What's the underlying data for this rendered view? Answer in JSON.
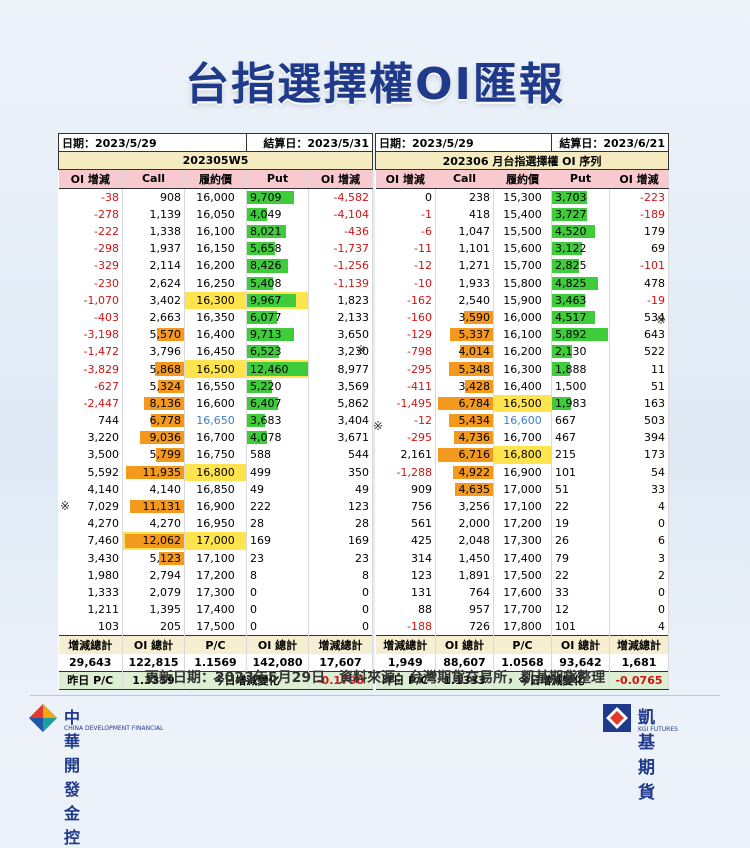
{
  "title": "台指選擇權OI匯報",
  "footer_text": "更新日期：2023年5月29日　資料來源：台灣期貨交易所，凱基期貨整理",
  "mark": "※",
  "left": {
    "date_label": "日期：2023/5/29",
    "settle_label": "結算日：2023/5/31",
    "series": "202305W5",
    "headers": [
      "OI 增減",
      "Call",
      "履約價",
      "Put",
      "OI 增減"
    ],
    "rows": [
      [
        "-38",
        "908",
        "16,000",
        "9,709",
        "-4,582"
      ],
      [
        "-278",
        "1,139",
        "16,050",
        "4,049",
        "-4,104"
      ],
      [
        "-222",
        "1,338",
        "16,100",
        "8,021",
        "-436"
      ],
      [
        "-298",
        "1,937",
        "16,150",
        "5,658",
        "-1,737"
      ],
      [
        "-329",
        "2,114",
        "16,200",
        "8,426",
        "-1,256"
      ],
      [
        "-230",
        "2,624",
        "16,250",
        "5,408",
        "-1,139"
      ],
      [
        "-1,070",
        "3,402",
        "16,300",
        "9,967",
        "1,823"
      ],
      [
        "-403",
        "2,663",
        "16,350",
        "6,077",
        "2,133"
      ],
      [
        "-3,198",
        "5,570",
        "16,400",
        "9,713",
        "3,650"
      ],
      [
        "-1,472",
        "3,796",
        "16,450",
        "6,523",
        "3,230"
      ],
      [
        "-3,829",
        "5,868",
        "16,500",
        "12,460",
        "8,977"
      ],
      [
        "-627",
        "5,324",
        "16,550",
        "5,220",
        "3,569"
      ],
      [
        "-2,447",
        "8,136",
        "16,600",
        "6,407",
        "5,862"
      ],
      [
        "744",
        "6,778",
        "16,650",
        "3,683",
        "3,404"
      ],
      [
        "3,220",
        "9,036",
        "16,700",
        "4,078",
        "3,671"
      ],
      [
        "3,500",
        "5,799",
        "16,750",
        "588",
        "544"
      ],
      [
        "5,592",
        "11,935",
        "16,800",
        "499",
        "350"
      ],
      [
        "4,140",
        "4,140",
        "16,850",
        "49",
        "49"
      ],
      [
        "7,029",
        "11,131",
        "16,900",
        "222",
        "123"
      ],
      [
        "4,270",
        "4,270",
        "16,950",
        "28",
        "28"
      ],
      [
        "7,460",
        "12,062",
        "17,000",
        "169",
        "169"
      ],
      [
        "3,430",
        "5,123",
        "17,100",
        "23",
        "23"
      ],
      [
        "1,980",
        "2,794",
        "17,200",
        "8",
        "8"
      ],
      [
        "1,333",
        "2,079",
        "17,300",
        "0",
        "0"
      ],
      [
        "1,211",
        "1,395",
        "17,400",
        "0",
        "0"
      ],
      [
        "103",
        "205",
        "17,500",
        "0",
        "0"
      ]
    ],
    "sum_headers": [
      "增減總計",
      "OI 總計",
      "P/C",
      "OI 總計",
      "增減總計"
    ],
    "sum_values": [
      "29,643",
      "122,815",
      "1.1569",
      "142,080",
      "17,607"
    ],
    "yesterday_label": "昨日 P/C",
    "yesterday_value": "1.3359",
    "change_label": "今日增減變化",
    "change_value": "-0.1790"
  },
  "right": {
    "date_label": "日期：2023/5/29",
    "settle_label": "結算日：2023/6/21",
    "series": "202306 月台指選擇權 OI 序列",
    "headers": [
      "OI 增減",
      "Call",
      "履約價",
      "Put",
      "OI 增減"
    ],
    "rows": [
      [
        "0",
        "238",
        "15,300",
        "3,703",
        "-223"
      ],
      [
        "-1",
        "418",
        "15,400",
        "3,727",
        "-189"
      ],
      [
        "-6",
        "1,047",
        "15,500",
        "4,520",
        "179"
      ],
      [
        "-11",
        "1,101",
        "15,600",
        "3,122",
        "69"
      ],
      [
        "-12",
        "1,271",
        "15,700",
        "2,825",
        "-101"
      ],
      [
        "-10",
        "1,933",
        "15,800",
        "4,825",
        "478"
      ],
      [
        "-162",
        "2,540",
        "15,900",
        "3,463",
        "-19"
      ],
      [
        "-160",
        "3,590",
        "16,000",
        "4,517",
        "534"
      ],
      [
        "-129",
        "5,337",
        "16,100",
        "5,892",
        "643"
      ],
      [
        "-798",
        "4,014",
        "16,200",
        "2,130",
        "522"
      ],
      [
        "-295",
        "5,348",
        "16,300",
        "1,888",
        "11"
      ],
      [
        "-411",
        "3,428",
        "16,400",
        "1,500",
        "51"
      ],
      [
        "-1,495",
        "6,784",
        "16,500",
        "1,983",
        "163"
      ],
      [
        "-12",
        "5,434",
        "16,600",
        "667",
        "503"
      ],
      [
        "-295",
        "4,736",
        "16,700",
        "467",
        "394"
      ],
      [
        "2,161",
        "6,716",
        "16,800",
        "215",
        "173"
      ],
      [
        "-1,288",
        "4,922",
        "16,900",
        "101",
        "54"
      ],
      [
        "909",
        "4,635",
        "17,000",
        "51",
        "33"
      ],
      [
        "756",
        "3,256",
        "17,100",
        "22",
        "4"
      ],
      [
        "561",
        "2,000",
        "17,200",
        "19",
        "0"
      ],
      [
        "425",
        "2,048",
        "17,300",
        "26",
        "6"
      ],
      [
        "314",
        "1,450",
        "17,400",
        "79",
        "3"
      ],
      [
        "123",
        "1,891",
        "17,500",
        "22",
        "2"
      ],
      [
        "131",
        "764",
        "17,600",
        "33",
        "0"
      ],
      [
        "88",
        "957",
        "17,700",
        "12",
        "0"
      ],
      [
        "-188",
        "726",
        "17,800",
        "101",
        "4"
      ]
    ],
    "sum_headers": [
      "增減總計",
      "OI 總計",
      "P/C",
      "OI 總計",
      "增減總計"
    ],
    "sum_values": [
      "1,949",
      "88,607",
      "1.0568",
      "93,642",
      "1,681"
    ],
    "yesterday_label": "昨日 P/C",
    "yesterday_value": "1.1333",
    "change_label": "今日增減變化",
    "change_value": "-0.0765"
  },
  "logo_left": {
    "name": "中華開發金控",
    "sub": "CHINA DEVELOPMENT FINANCIAL"
  },
  "logo_right": {
    "name": "凱基期貨",
    "sub": "KGI FUTURES"
  },
  "colors": {
    "call_bar": "#f39a1e",
    "put_bar": "#3fcc3a",
    "highlight": "#ffe44d",
    "negative": "#d01414",
    "blue_strike": "#3a7ec8",
    "title": "#1f3a8a"
  }
}
